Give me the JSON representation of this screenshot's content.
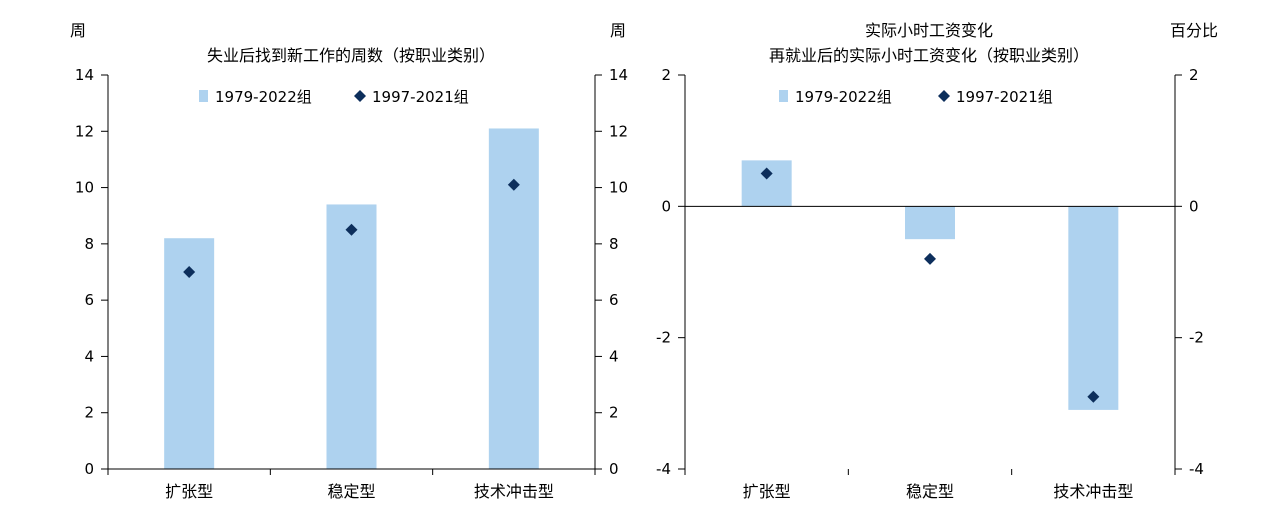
{
  "chart_data": [
    {
      "type": "bar",
      "title": "失业后找到新工作的周数（按职业类别）",
      "ylabel_left": "周",
      "ylabel_right": "周",
      "categories": [
        "扩张型",
        "稳定型",
        "技术冲击型"
      ],
      "ylim": [
        0,
        14
      ],
      "yticks": [
        "0",
        "2",
        "4",
        "6",
        "8",
        "10",
        "12",
        "14"
      ],
      "series": [
        {
          "name": "1979-2022组",
          "mark": "bar",
          "color": "#aed2ef",
          "values": [
            8.2,
            9.4,
            12.1
          ]
        },
        {
          "name": "1997-2021组",
          "mark": "diamond",
          "color": "#0d2f5c",
          "values": [
            7.0,
            8.5,
            10.1
          ]
        }
      ],
      "legend": "top"
    },
    {
      "type": "bar",
      "title_line1": "实际小时工资变化",
      "title_line2": "再就业后的实际小时工资变化（按职业类别）",
      "ylabel_right": "百分比",
      "categories": [
        "扩张型",
        "稳定型",
        "技术冲击型"
      ],
      "ylim": [
        -4,
        2
      ],
      "yticks": [
        "-4",
        "-2",
        "0",
        "2"
      ],
      "series": [
        {
          "name": "1979-2022组",
          "mark": "bar",
          "color": "#aed2ef",
          "values": [
            0.7,
            -0.5,
            -3.1
          ]
        },
        {
          "name": "1997-2021组",
          "mark": "diamond",
          "color": "#0d2f5c",
          "values": [
            0.5,
            -0.8,
            -2.9
          ]
        }
      ],
      "legend": "top"
    }
  ]
}
